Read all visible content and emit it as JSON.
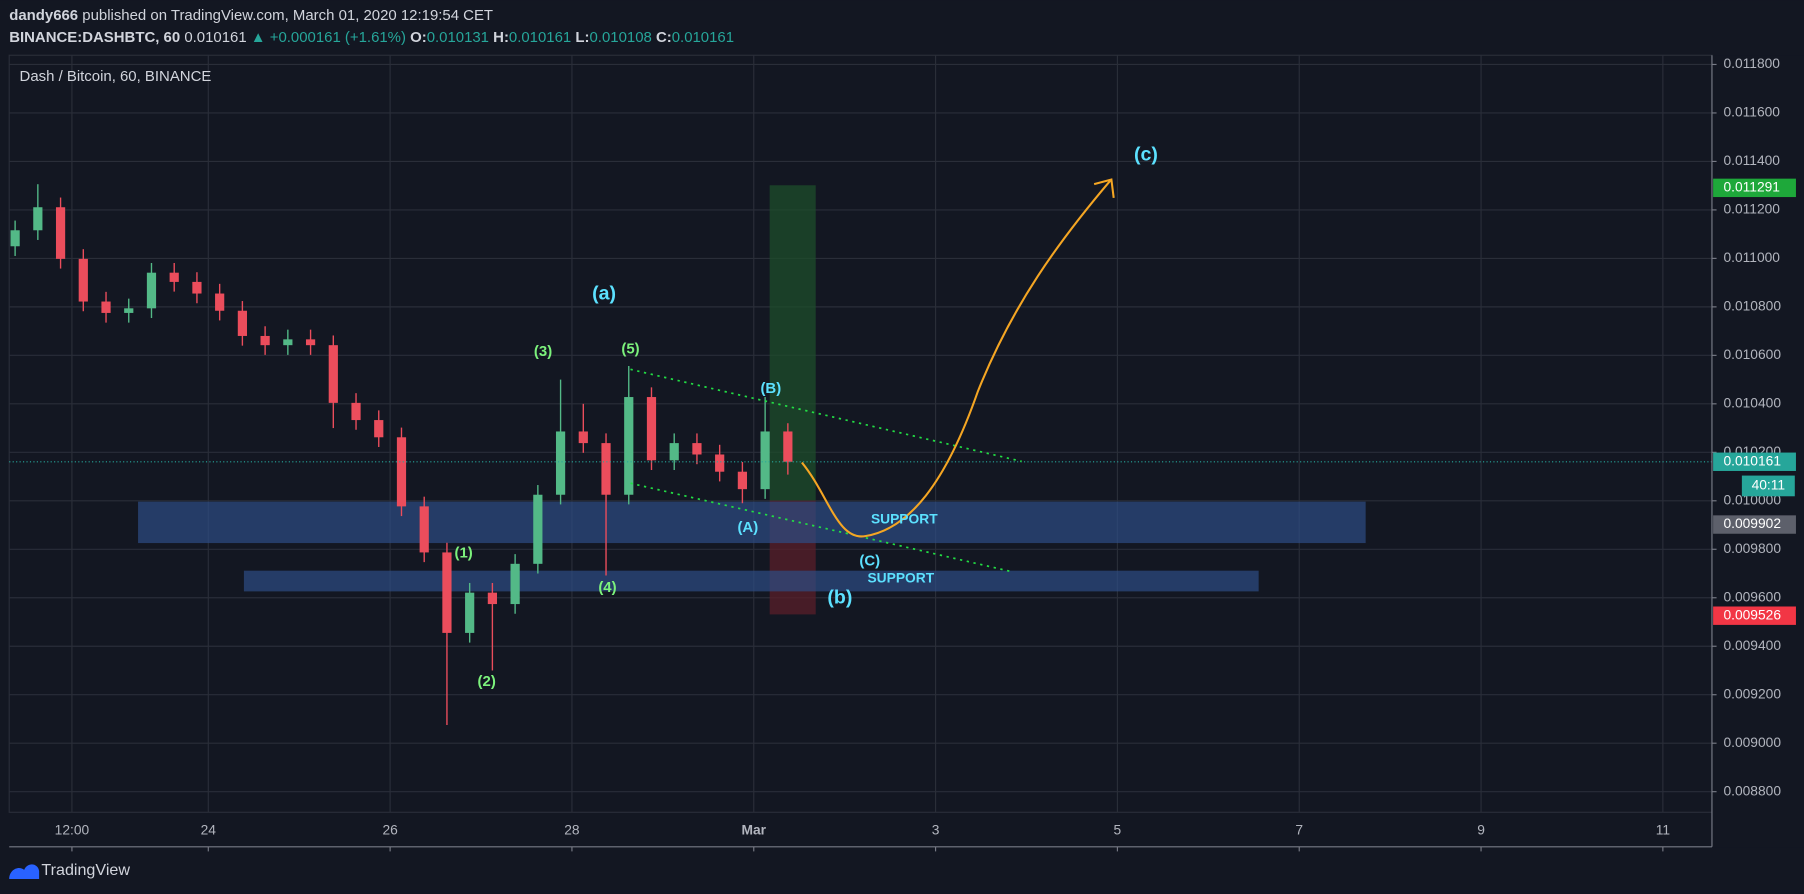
{
  "header": {
    "author": "dandy666",
    "published": "published on TradingView.com, March 01, 2020 12:19:54 CET",
    "symbol": "BINANCE:DASHBTC, 60",
    "last": "0.010161",
    "change": "▲ +0.000161 (+1.61%)",
    "ohlc": [
      {
        "key": "O:",
        "value": "0.010131"
      },
      {
        "key": "H:",
        "value": "0.010161"
      },
      {
        "key": "L:",
        "value": "0.010108"
      },
      {
        "key": "C:",
        "value": "0.010161"
      }
    ]
  },
  "footer": {
    "brand": "TradingView"
  },
  "chart_data": {
    "type": "candlestick",
    "title": "Dash / Bitcoin, 60, BINANCE",
    "up_color": "#53b987",
    "down_color": "#eb4d5c",
    "grid": true,
    "x": [
      21.875,
      22.125,
      22.375,
      22.625,
      22.875,
      23.125,
      23.375,
      23.625,
      23.875,
      24.125,
      24.375,
      24.625,
      24.875,
      25.125,
      25.375,
      25.625,
      25.875,
      26.125,
      26.375,
      26.625,
      26.875,
      27.125,
      27.375,
      27.625,
      27.875,
      28.125,
      28.375,
      28.625,
      28.875,
      29.125,
      29.375,
      29.625,
      29.875,
      30.125,
      30.375
    ],
    "open": [
      0.01105,
      0.011116,
      0.011211,
      0.010998,
      0.010822,
      0.010775,
      0.010794,
      0.010941,
      0.010903,
      0.010855,
      0.010784,
      0.01068,
      0.010642,
      0.010666,
      0.010642,
      0.010404,
      0.010333,
      0.010262,
      0.009977,
      0.009787,
      0.009455,
      0.009621,
      0.009574,
      0.00974,
      0.010025,
      0.010286,
      0.010238,
      0.010025,
      0.010428,
      0.010167,
      0.010238,
      0.010191,
      0.01012,
      0.010048,
      0.010286
    ],
    "high": [
      0.011156,
      0.011306,
      0.011251,
      0.011038,
      0.010862,
      0.010834,
      0.010981,
      0.010981,
      0.010943,
      0.010895,
      0.010824,
      0.01072,
      0.010706,
      0.010706,
      0.010682,
      0.010444,
      0.010373,
      0.010302,
      0.010017,
      0.009827,
      0.009661,
      0.009661,
      0.00978,
      0.010065,
      0.0105,
      0.0104,
      0.010278,
      0.010556,
      0.010468,
      0.010278,
      0.010278,
      0.010231,
      0.01016,
      0.010428,
      0.01032
    ],
    "low": [
      0.01101,
      0.011076,
      0.010958,
      0.010782,
      0.010735,
      0.010735,
      0.010754,
      0.010863,
      0.010815,
      0.010744,
      0.01064,
      0.010602,
      0.010602,
      0.010602,
      0.0103,
      0.010293,
      0.010222,
      0.009937,
      0.009747,
      0.009075,
      0.009415,
      0.0093,
      0.009534,
      0.0097,
      0.009985,
      0.010198,
      0.009692,
      0.009985,
      0.010127,
      0.010127,
      0.010151,
      0.01008,
      0.00999,
      0.010008,
      0.010108
    ],
    "close": [
      0.011116,
      0.011211,
      0.010998,
      0.010822,
      0.010775,
      0.010794,
      0.010941,
      0.010903,
      0.010855,
      0.010784,
      0.01068,
      0.010642,
      0.010666,
      0.010642,
      0.010404,
      0.010333,
      0.010262,
      0.009977,
      0.009787,
      0.009455,
      0.009621,
      0.009574,
      0.00974,
      0.010025,
      0.010286,
      0.010238,
      0.010025,
      0.010428,
      0.010167,
      0.010238,
      0.010191,
      0.01012,
      0.010048,
      0.010286,
      0.010161
    ],
    "xlim": [
      21.81,
      40.54
    ],
    "xticks": [
      {
        "value": 22.5,
        "label": "12:00"
      },
      24,
      26,
      28,
      {
        "value": 30,
        "label": "Mar"
      },
      {
        "value": 32,
        "label": "3"
      },
      {
        "value": 34,
        "label": "5"
      },
      {
        "value": 36,
        "label": "7"
      },
      {
        "value": 38,
        "label": "9"
      },
      {
        "value": 40,
        "label": "11"
      }
    ],
    "ylim": [
      0.008715,
      0.011838
    ],
    "yticks": [
      {
        "value": 0.0088,
        "label": "0.008800"
      },
      {
        "value": 0.009,
        "label": "0.009000"
      },
      {
        "value": 0.0092,
        "label": "0.009200"
      },
      {
        "value": 0.0094,
        "label": "0.009400"
      },
      {
        "value": 0.0096,
        "label": "0.009600"
      },
      {
        "value": 0.0098,
        "label": "0.009800"
      },
      {
        "value": 0.01,
        "label": "0.010000"
      },
      {
        "value": 0.0102,
        "label": "0.010200"
      },
      {
        "value": 0.0104,
        "label": "0.010400"
      },
      {
        "value": 0.0106,
        "label": "0.010600"
      },
      {
        "value": 0.0108,
        "label": "0.010800"
      },
      {
        "value": 0.011,
        "label": "0.011000"
      },
      {
        "value": 0.0112,
        "label": "0.011200"
      },
      {
        "value": 0.0114,
        "label": "0.011400"
      },
      {
        "value": 0.0116,
        "label": "0.011600"
      },
      {
        "value": 0.0118,
        "label": "0.011800"
      }
    ],
    "price_markers": [
      {
        "value": 0.011291,
        "color": "#1ea83a"
      },
      {
        "value": 0.010161,
        "color": "#26a69a"
      },
      {
        "value": 0.009902,
        "color": "#5d606b"
      },
      {
        "value": 0.009526,
        "color": "#f23645"
      }
    ],
    "countdown": "40:11",
    "annotations": [
      {
        "text": "(a)",
        "color": "#5ce1ff"
      },
      {
        "text": "(3)",
        "color": "#7cf27c"
      },
      {
        "text": "(5)",
        "color": "#7cf27c"
      },
      {
        "text": "(B)",
        "color": "#5ce1ff"
      },
      {
        "text": "(A)",
        "color": "#5ce1ff"
      },
      {
        "text": "(1)",
        "color": "#7cf27c"
      },
      {
        "text": "(2)",
        "color": "#7cf27c"
      },
      {
        "text": "(4)",
        "color": "#7cf27c"
      },
      {
        "text": "(C)",
        "color": "#5ce1ff"
      },
      {
        "text": "(b)",
        "color": "#5ce1ff"
      },
      {
        "text": "(c)",
        "color": "#5ce1ff"
      },
      {
        "text": "SUPPORT",
        "color": "#5ce1ff"
      },
      {
        "text": "SUPPORT",
        "color": "#5ce1ff"
      }
    ]
  }
}
